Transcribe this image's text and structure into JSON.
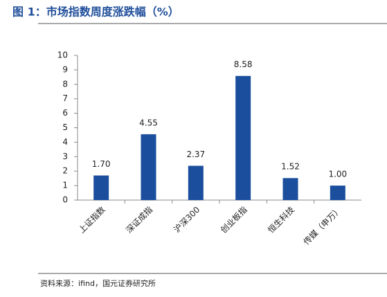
{
  "chart_data": {
    "type": "bar",
    "title": "图 1：市场指数周度涨跌幅（%）",
    "categories": [
      "上证指数",
      "深证成指",
      "沪深300",
      "创业板指",
      "恒生科技",
      "传媒（申万）"
    ],
    "values": [
      1.7,
      4.55,
      2.37,
      8.58,
      1.52,
      1.0
    ],
    "value_labels": [
      "1.70",
      "4.55",
      "2.37",
      "8.58",
      "1.52",
      "1.00"
    ],
    "color": "#1b4f9e",
    "ylim": [
      0,
      10
    ],
    "yticks": [
      0,
      1,
      2,
      3,
      4,
      5,
      6,
      7,
      8,
      9,
      10
    ],
    "grid": false,
    "source": "资料来源：ifind，国元证券研究所"
  }
}
